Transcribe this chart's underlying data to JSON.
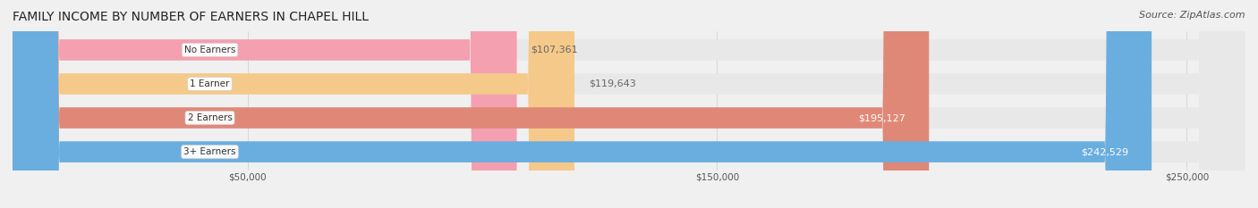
{
  "title": "FAMILY INCOME BY NUMBER OF EARNERS IN CHAPEL HILL",
  "source": "Source: ZipAtlas.com",
  "categories": [
    "No Earners",
    "1 Earner",
    "2 Earners",
    "3+ Earners"
  ],
  "values": [
    107361,
    119643,
    195127,
    242529
  ],
  "bar_colors": [
    "#f4a0b0",
    "#f5c98a",
    "#e08878",
    "#6aaee0"
  ],
  "label_colors": [
    "#c06070",
    "#c09040",
    "#ffffff",
    "#ffffff"
  ],
  "value_label_colors": [
    "#888888",
    "#888888",
    "#ffffff",
    "#ffffff"
  ],
  "xlim": [
    0,
    262500
  ],
  "xticks": [
    50000,
    150000,
    250000
  ],
  "xtick_labels": [
    "$50,000",
    "$150,000",
    "$250,000"
  ],
  "background_color": "#f0f0f0",
  "bar_background_color": "#e8e8e8",
  "title_fontsize": 10,
  "source_fontsize": 8,
  "bar_label_fontsize": 8,
  "value_fontsize": 8
}
